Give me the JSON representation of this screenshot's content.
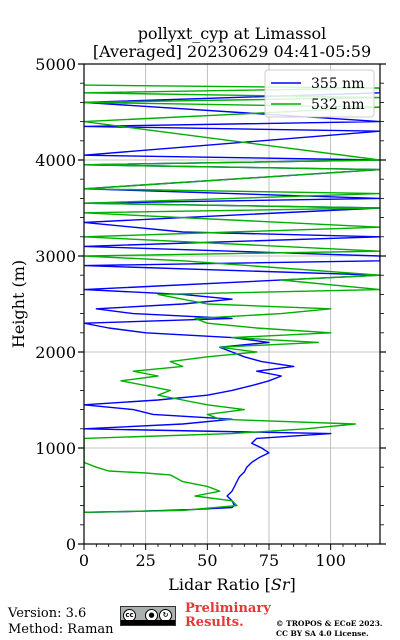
{
  "chart_data": {
    "type": "line",
    "title_line1": "pollyxt_cyp at Limassol",
    "title_line2": "[Averaged] 20230629 04:41-05:59",
    "xlabel": "Lidar Ratio [",
    "xlabel_unit": "Sr",
    "xlabel_end": "]",
    "ylabel": "Height (m)",
    "xlim": [
      0,
      120
    ],
    "ylim": [
      0,
      5000
    ],
    "xticks": [
      "0",
      "25",
      "50",
      "75",
      "100"
    ],
    "xtick_values": [
      0,
      25,
      50,
      75,
      100
    ],
    "yticks": [
      "0",
      "1000",
      "2000",
      "3000",
      "4000",
      "5000"
    ],
    "ytick_values": [
      0,
      1000,
      2000,
      3000,
      4000,
      5000
    ],
    "grid": true,
    "legend_position": "top-right",
    "series": [
      {
        "name": "355 nm",
        "color": "#0000ff",
        "points": [
          [
            0,
            330
          ],
          [
            20,
            340
          ],
          [
            45,
            360
          ],
          [
            60,
            380
          ],
          [
            61,
            400
          ],
          [
            60,
            450
          ],
          [
            58,
            500
          ],
          [
            60,
            550
          ],
          [
            61,
            600
          ],
          [
            62,
            650
          ],
          [
            63,
            700
          ],
          [
            65,
            750
          ],
          [
            66,
            800
          ],
          [
            68,
            850
          ],
          [
            71,
            900
          ],
          [
            75,
            950
          ],
          [
            72,
            1000
          ],
          [
            68,
            1050
          ],
          [
            70,
            1100
          ],
          [
            100,
            1150
          ],
          [
            0,
            1200
          ],
          [
            40,
            1250
          ],
          [
            60,
            1300
          ],
          [
            28,
            1350
          ],
          [
            20,
            1400
          ],
          [
            0,
            1450
          ],
          [
            30,
            1500
          ],
          [
            50,
            1550
          ],
          [
            60,
            1600
          ],
          [
            68,
            1650
          ],
          [
            75,
            1700
          ],
          [
            80,
            1750
          ],
          [
            70,
            1800
          ],
          [
            85,
            1850
          ],
          [
            72,
            1900
          ],
          [
            65,
            1950
          ],
          [
            60,
            2000
          ],
          [
            55,
            2050
          ],
          [
            75,
            2100
          ],
          [
            60,
            2150
          ],
          [
            25,
            2200
          ],
          [
            10,
            2250
          ],
          [
            0,
            2300
          ],
          [
            60,
            2350
          ],
          [
            20,
            2400
          ],
          [
            5,
            2450
          ],
          [
            40,
            2500
          ],
          [
            60,
            2550
          ],
          [
            40,
            2600
          ],
          [
            0,
            2650
          ],
          [
            120,
            2800
          ],
          [
            0,
            2900
          ],
          [
            120,
            2950
          ],
          [
            120,
            3000
          ],
          [
            0,
            3100
          ],
          [
            120,
            3200
          ],
          [
            40,
            3250
          ],
          [
            0,
            3350
          ],
          [
            120,
            3500
          ],
          [
            0,
            3550
          ],
          [
            120,
            3600
          ],
          [
            0,
            3700
          ],
          [
            120,
            3900
          ],
          [
            0,
            3950
          ],
          [
            120,
            4000
          ],
          [
            0,
            4050
          ],
          [
            120,
            4300
          ],
          [
            0,
            4350
          ],
          [
            120,
            4400
          ],
          [
            0,
            4600
          ],
          [
            120,
            4700
          ],
          [
            120,
            4750
          ]
        ]
      },
      {
        "name": "532 nm",
        "color": "#00b000",
        "points": [
          [
            0,
            850
          ],
          [
            5,
            800
          ],
          [
            10,
            760
          ],
          [
            25,
            740
          ],
          [
            35,
            720
          ],
          [
            40,
            650
          ],
          [
            50,
            600
          ],
          [
            55,
            550
          ],
          [
            45,
            500
          ],
          [
            60,
            450
          ],
          [
            62,
            400
          ],
          [
            40,
            350
          ],
          [
            0,
            330
          ],
          [
            0,
            1100
          ],
          [
            60,
            1150
          ],
          [
            90,
            1200
          ],
          [
            110,
            1250
          ],
          [
            55,
            1300
          ],
          [
            50,
            1350
          ],
          [
            65,
            1400
          ],
          [
            50,
            1450
          ],
          [
            40,
            1500
          ],
          [
            30,
            1550
          ],
          [
            35,
            1600
          ],
          [
            25,
            1650
          ],
          [
            15,
            1700
          ],
          [
            30,
            1750
          ],
          [
            20,
            1800
          ],
          [
            40,
            1850
          ],
          [
            35,
            1900
          ],
          [
            50,
            1950
          ],
          [
            70,
            2000
          ],
          [
            55,
            2050
          ],
          [
            95,
            2100
          ],
          [
            60,
            2150
          ],
          [
            100,
            2200
          ],
          [
            70,
            2250
          ],
          [
            50,
            2300
          ],
          [
            45,
            2350
          ],
          [
            80,
            2400
          ],
          [
            100,
            2450
          ],
          [
            50,
            2500
          ],
          [
            40,
            2550
          ],
          [
            30,
            2600
          ],
          [
            120,
            2650
          ],
          [
            80,
            2750
          ],
          [
            120,
            2800
          ],
          [
            40,
            2950
          ],
          [
            0,
            3000
          ],
          [
            120,
            3050
          ],
          [
            0,
            3200
          ],
          [
            120,
            3300
          ],
          [
            0,
            3450
          ],
          [
            120,
            3500
          ],
          [
            0,
            3550
          ],
          [
            120,
            3650
          ],
          [
            0,
            3700
          ],
          [
            120,
            3900
          ],
          [
            0,
            3950
          ],
          [
            120,
            4000
          ],
          [
            0,
            4400
          ],
          [
            120,
            4550
          ],
          [
            0,
            4600
          ],
          [
            120,
            4650
          ],
          [
            0,
            4700
          ],
          [
            120,
            4750
          ],
          [
            0,
            4780
          ]
        ]
      }
    ]
  },
  "footer": {
    "version": "Version: 3.6",
    "method": "Method: Raman",
    "prelim_line1": "Preliminary",
    "prelim_line2": "Results.",
    "copyright_line1": "© TROPOS & ECoE 2023.",
    "copyright_line2": "CC BY SA 4.0 License."
  },
  "license_badge": {
    "icon": "cc-by-sa-icon",
    "text": "cc"
  }
}
